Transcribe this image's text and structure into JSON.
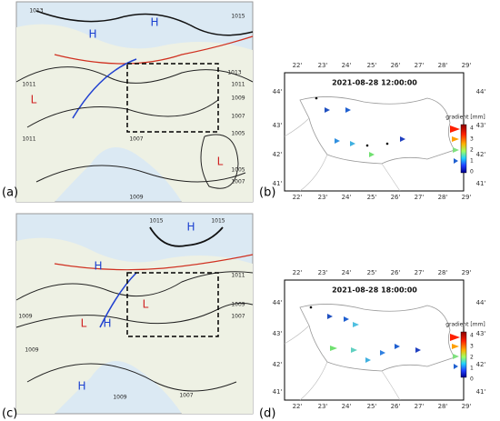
{
  "panels": [
    {
      "label": "(a)",
      "map_labels": [
        "1013",
        "1015",
        "H",
        "H",
        "1013",
        "1011",
        "L",
        "1011",
        "1009",
        "1007",
        "1007",
        "1005",
        "L",
        "1011",
        "1005",
        "1007",
        "1009"
      ]
    },
    {
      "label": "(b)",
      "title": "2021-08-28 12:00:00",
      "lon": [
        "22'",
        "23'",
        "24'",
        "25'",
        "26'",
        "27'",
        "28'",
        "29'"
      ],
      "lat": [
        "44'",
        "43'",
        "42'",
        "41'"
      ],
      "colorbar_label": "gradient [mm]",
      "colorbar_ticks": [
        "4",
        "3",
        "2",
        "1",
        "0"
      ]
    },
    {
      "label": "(c)",
      "map_labels": [
        "1015",
        "H",
        "1015",
        "H",
        "1011",
        "1009",
        "L",
        "H",
        "1009",
        "1007",
        "1009",
        "H",
        "1009",
        "1007",
        "L"
      ]
    },
    {
      "label": "(d)",
      "title": "2021-08-28 18:00:00",
      "lon": [
        "22'",
        "23'",
        "24'",
        "25'",
        "26'",
        "27'",
        "28'",
        "29'"
      ],
      "lat": [
        "44'",
        "43'",
        "42'",
        "41'"
      ],
      "colorbar_label": "gradient [mm]",
      "colorbar_ticks": [
        "4",
        "3",
        "2",
        "1",
        "0"
      ]
    }
  ]
}
